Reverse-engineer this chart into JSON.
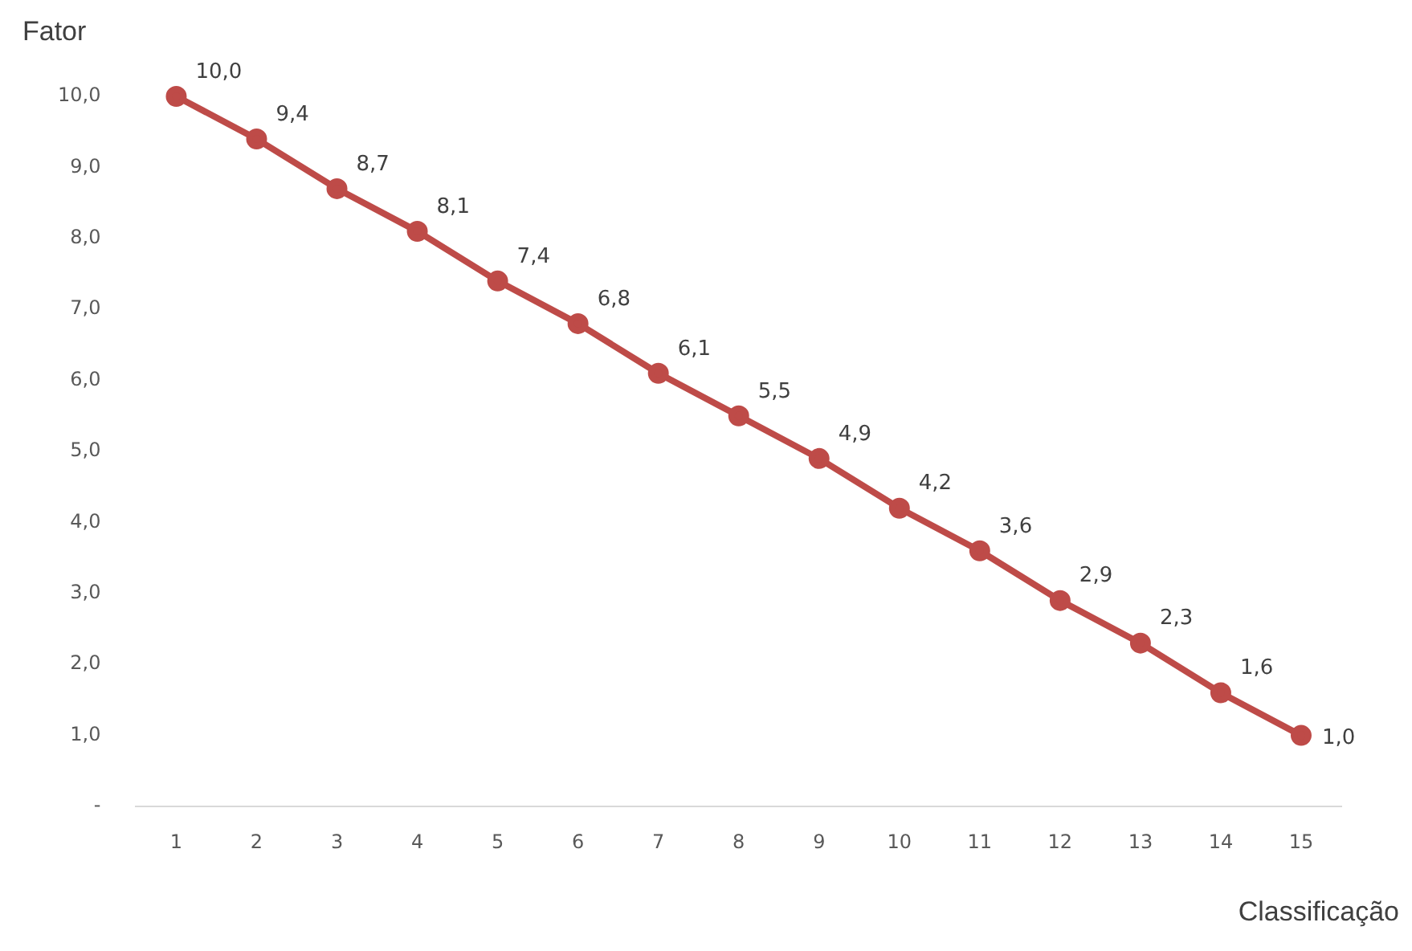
{
  "chart_data": {
    "type": "line",
    "xlabel": "Classificação",
    "ylabel": "Fator",
    "categories": [
      "1",
      "2",
      "3",
      "4",
      "5",
      "6",
      "7",
      "8",
      "9",
      "10",
      "11",
      "12",
      "13",
      "14",
      "15"
    ],
    "series": [
      {
        "color": "#be4b48",
        "values": [
          10,
          9.4,
          8.7,
          8.1,
          7.4,
          6.8,
          6.1,
          5.5,
          4.9,
          4.2,
          3.6,
          2.9,
          2.3,
          1.6,
          1.0
        ],
        "value_labels": [
          "10,0",
          "9,4",
          "8,7",
          "8,1",
          "7,4",
          "6,8",
          "6,1",
          "5,5",
          "4,9",
          "4,2",
          "3,6",
          "2,9",
          "2,3",
          "1,6",
          "1,0"
        ]
      }
    ],
    "ylim": [
      0,
      10
    ],
    "yticks": [
      {
        "value": 0,
        "label": "-"
      },
      {
        "value": 1,
        "label": "1,0"
      },
      {
        "value": 2,
        "label": "2,0"
      },
      {
        "value": 3,
        "label": "3,0"
      },
      {
        "value": 4,
        "label": "4,0"
      },
      {
        "value": 5,
        "label": "5,0"
      },
      {
        "value": 6,
        "label": "6,0"
      },
      {
        "value": 7,
        "label": "7,0"
      },
      {
        "value": 8,
        "label": "8,0"
      },
      {
        "value": 9,
        "label": "9,0"
      },
      {
        "value": 10,
        "label": "10,0"
      }
    ],
    "grid": false,
    "legend": false,
    "marker": "circle",
    "line_style": "solid"
  }
}
